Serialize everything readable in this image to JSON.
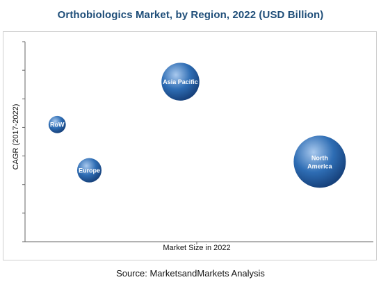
{
  "chart_data": {
    "type": "bubble",
    "title": "Orthobiologics Market, by Region, 2022 (USD Billion)",
    "xlabel": "Market Size in 2022",
    "ylabel": "CAGR (2017-2022)",
    "grid": false,
    "points": [
      {
        "name": "Asia Pacific",
        "label_lines": [
          "Asia Pacific"
        ],
        "x": 2.9,
        "y": 5.6,
        "size": 2.9
      },
      {
        "name": "RoW",
        "label_lines": [
          "RoW"
        ],
        "x": 0.6,
        "y": 4.1,
        "size": 0.6
      },
      {
        "name": "Europe",
        "label_lines": [
          "Europe"
        ],
        "x": 1.2,
        "y": 2.5,
        "size": 1.2
      },
      {
        "name": "North America",
        "label_lines": [
          "North",
          "America"
        ],
        "x": 5.5,
        "y": 2.8,
        "size": 5.5
      }
    ],
    "colors": {
      "bubble": "#2e6db4",
      "bubble_light": "#a9c9ee",
      "bubble_dark": "#16407a"
    }
  },
  "footer": {
    "source": "Source: MarketsandMarkets Analysis"
  }
}
